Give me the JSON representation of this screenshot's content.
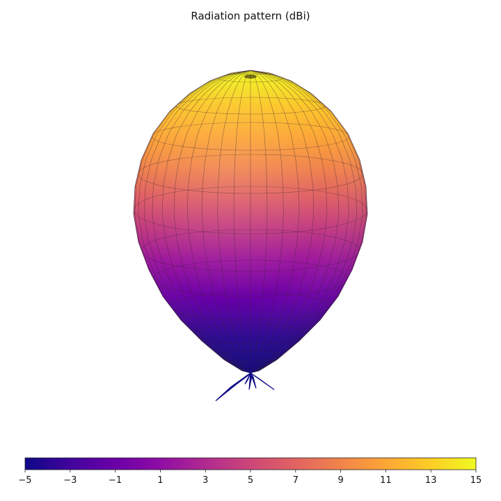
{
  "chart_data": {
    "type": "surface-3d",
    "title": "Radiation pattern (dBi)",
    "colormap": "plasma",
    "colorbar": {
      "orientation": "horizontal",
      "placement": "bottom",
      "range": [
        -5,
        15
      ],
      "ticks": [
        -5,
        -3,
        -1,
        1,
        3,
        5,
        7,
        9,
        11,
        13,
        15
      ],
      "tick_labels": [
        "−5",
        "−3",
        "−1",
        "1",
        "3",
        "5",
        "7",
        "9",
        "11",
        "13",
        "15"
      ]
    },
    "gain_range_dbi": [
      -5,
      15
    ],
    "main_lobe_direction": "up",
    "grid": true,
    "axes_visible": false
  }
}
